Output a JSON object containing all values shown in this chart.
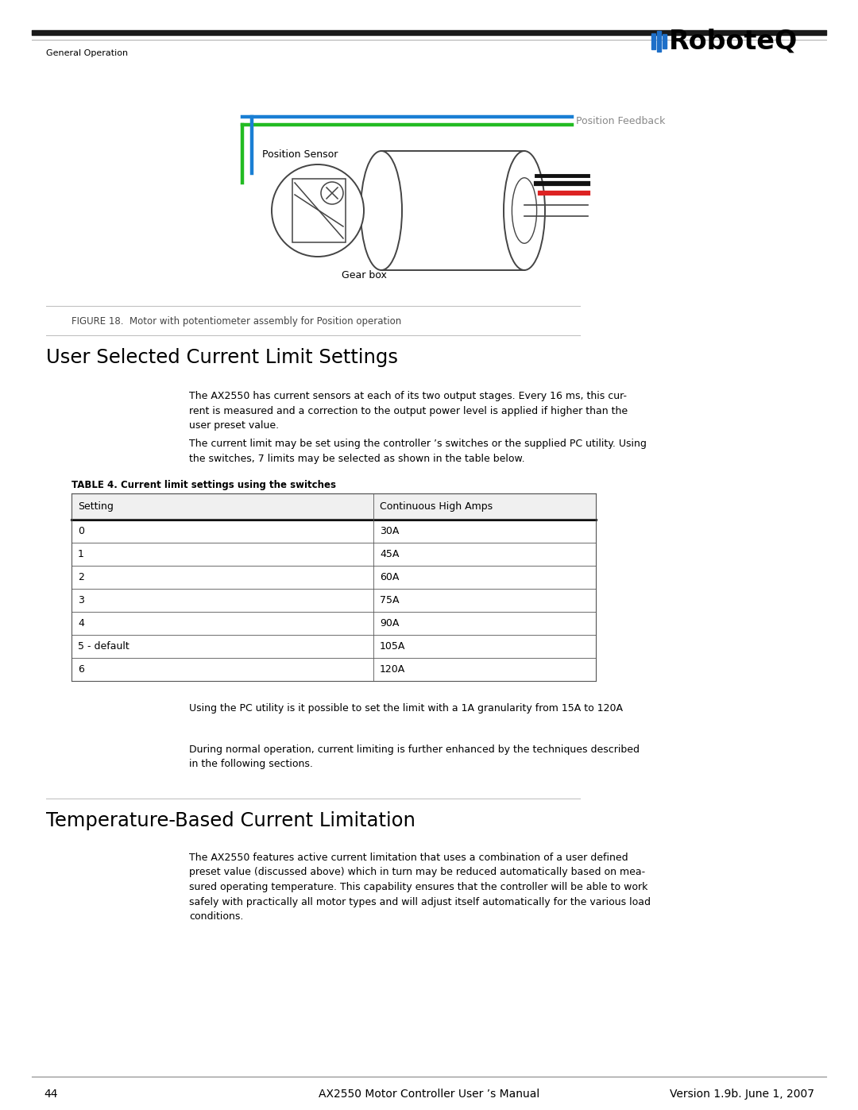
{
  "page_number": "44",
  "header_section": "General Operation",
  "footer_center": "AX2550 Motor Controller User ’s Manual",
  "footer_right": "Version 1.9b. June 1, 2007",
  "figure_caption": "FIGURE 18.  Motor with potentiometer assembly for Position operation",
  "section1_title": "User Selected Current Limit Settings",
  "section1_para1": "The AX2550 has current sensors at each of its two output stages. Every 16 ms, this cur-\nrent is measured and a correction to the output power level is applied if higher than the\nuser preset value.",
  "section1_para2": "The current limit may be set using the controller ’s switches or the supplied PC utility. Using\nthe switches, 7 limits may be selected as shown in the table below.",
  "table_title": "TABLE 4. Current limit settings using the switches",
  "table_col1": "Setting",
  "table_col2": "Continuous High Amps",
  "table_rows": [
    [
      "0",
      "30A"
    ],
    [
      "1",
      "45A"
    ],
    [
      "2",
      "60A"
    ],
    [
      "3",
      "75A"
    ],
    [
      "4",
      "90A"
    ],
    [
      "5 - default",
      "105A"
    ],
    [
      "6",
      "120A"
    ]
  ],
  "section1_para3": "Using the PC utility is it possible to set the limit with a 1A granularity from 15A to 120A",
  "section1_para4": "During normal operation, current limiting is further enhanced by the techniques described\nin the following sections.",
  "section2_title": "Temperature-Based Current Limitation",
  "section2_para1": "The AX2550 features active current limitation that uses a combination of a user defined\npreset value (discussed above) which in turn may be reduced automatically based on mea-\nsured operating temperature. This capability ensures that the controller will be able to work\nsafely with practically all motor types and will adjust itself automatically for the various load\nconditions.",
  "bg_color": "#ffffff",
  "text_color": "#000000",
  "header_thick_line": "#1a1a1a",
  "table_border_color": "#555555",
  "table_thick_line": "#111111",
  "divider_color": "#aaaaaa",
  "logo_blue": "#1e6fc8",
  "logo_black": "#000000",
  "wire_blue": "#1a7fd4",
  "wire_green": "#22bb22",
  "wire_red": "#dd2222",
  "wire_black": "#111111",
  "motor_line": "#444444",
  "caption_color": "#444444",
  "feedback_label_color": "#888888"
}
